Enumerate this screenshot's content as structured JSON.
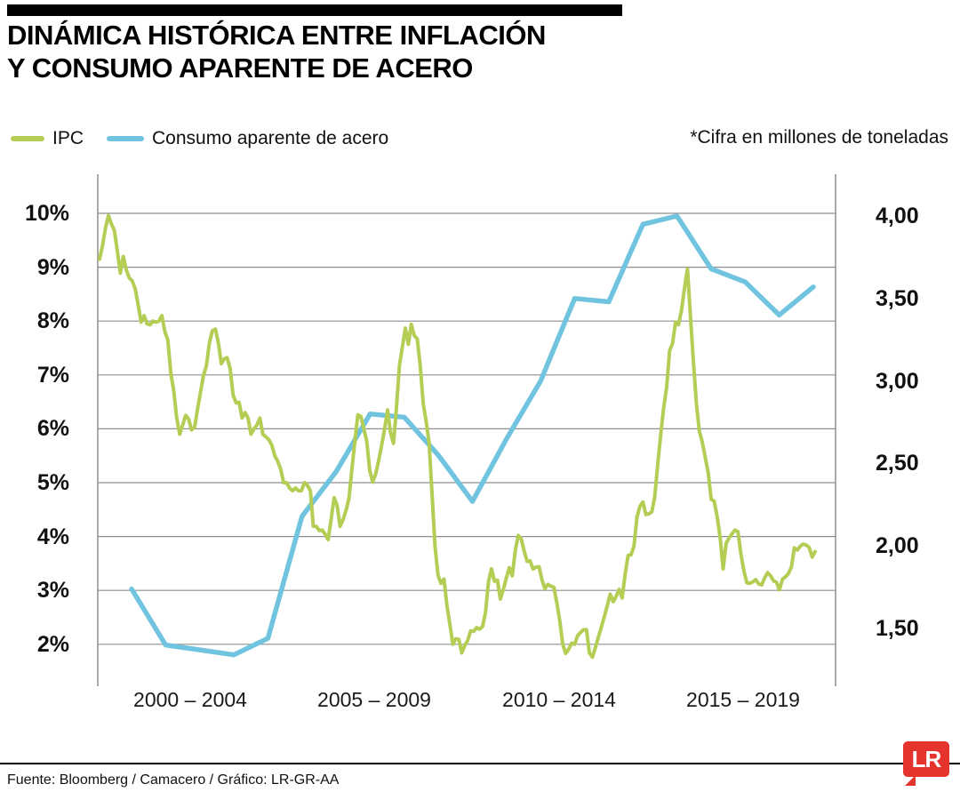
{
  "header": {
    "title_line1": "DINÁMICA HISTÓRICA ENTRE INFLACIÓN",
    "title_line2": "Y CONSUMO APARENTE DE ACERO"
  },
  "legend": {
    "items": [
      {
        "label": "IPC",
        "color": "#b4cd55"
      },
      {
        "label": "Consumo aparente de acero",
        "color": "#71c4df"
      }
    ],
    "note": "*Cifra en millones de toneladas"
  },
  "footer": {
    "source": "Fuente: Bloomberg / Camacero / Gráfico: LR-GR-AA",
    "logo_text": "LR",
    "logo_color": "#e5332e"
  },
  "chart_data": {
    "type": "line",
    "title": "Dinámica histórica entre inflación y consumo aparente de acero",
    "grid_color": "#8f8f8f",
    "x_categories": [
      "2000 – 2004",
      "2005 – 2009",
      "2010 – 2014",
      "2015 – 2019"
    ],
    "left_axis": {
      "unit": "%",
      "min": 2,
      "max": 10,
      "values": [
        10,
        9,
        8,
        7,
        6,
        5,
        4,
        3,
        2
      ],
      "tick_labels": [
        "10%",
        "9%",
        "8%",
        "7%",
        "6%",
        "5%",
        "4%",
        "3%",
        "2%"
      ]
    },
    "right_axis": {
      "unit": "millones de toneladas",
      "min": 1.5,
      "max": 4.0,
      "values": [
        4.0,
        3.5,
        3.0,
        2.5,
        2.0,
        1.5
      ],
      "tick_labels": [
        "4,00",
        "3,50",
        "3,00",
        "2,50",
        "2,00",
        "1,50"
      ]
    },
    "series": [
      {
        "name": "IPC",
        "axis": "left",
        "color": "#b4cd55",
        "frequency": "monthly",
        "start_year": 2000,
        "end": "2020-02",
        "values": [
          9.15,
          9.4,
          9.73,
          9.96,
          9.8,
          9.68,
          9.3,
          8.89,
          9.2,
          8.95,
          8.8,
          8.75,
          8.6,
          8.3,
          7.98,
          8.1,
          7.95,
          7.93,
          8.0,
          7.98,
          8.0,
          8.1,
          7.8,
          7.65,
          7.03,
          6.7,
          6.2,
          5.9,
          6.07,
          6.25,
          6.18,
          5.98,
          6.03,
          6.36,
          6.68,
          6.99,
          7.17,
          7.6,
          7.82,
          7.85,
          7.6,
          7.21,
          7.3,
          7.32,
          7.11,
          6.62,
          6.48,
          6.49,
          6.2,
          6.3,
          6.2,
          5.9,
          6.0,
          6.07,
          6.2,
          5.9,
          5.85,
          5.8,
          5.7,
          5.5,
          5.4,
          5.25,
          5.0,
          5.0,
          4.9,
          4.85,
          4.9,
          4.85,
          4.85,
          5.0,
          4.95,
          4.85,
          4.19,
          4.19,
          4.11,
          4.12,
          4.04,
          3.94,
          4.32,
          4.72,
          4.58,
          4.19,
          4.31,
          4.48,
          4.71,
          5.25,
          5.78,
          6.26,
          6.23,
          6.0,
          5.77,
          5.22,
          5.01,
          5.16,
          5.41,
          5.69,
          6.0,
          6.35,
          5.93,
          5.73,
          6.39,
          7.18,
          7.52,
          7.87,
          7.57,
          7.94,
          7.73,
          7.67,
          7.18,
          6.47,
          6.14,
          5.73,
          4.77,
          3.81,
          3.28,
          3.13,
          3.21,
          2.72,
          2.37,
          2.0,
          2.1,
          2.09,
          1.84,
          1.98,
          2.07,
          2.25,
          2.24,
          2.31,
          2.28,
          2.33,
          2.59,
          3.17,
          3.4,
          3.17,
          3.19,
          2.84,
          3.02,
          3.23,
          3.42,
          3.27,
          3.73,
          4.02,
          3.96,
          3.73,
          3.54,
          3.55,
          3.4,
          3.43,
          3.44,
          3.2,
          3.03,
          3.11,
          3.08,
          3.06,
          2.77,
          2.44,
          2.0,
          1.83,
          1.91,
          2.02,
          2.0,
          2.16,
          2.22,
          2.27,
          2.27,
          1.84,
          1.76,
          1.94,
          2.13,
          2.32,
          2.51,
          2.72,
          2.93,
          2.79,
          2.89,
          3.02,
          2.86,
          3.29,
          3.65,
          3.66,
          3.82,
          4.36,
          4.56,
          4.64,
          4.41,
          4.42,
          4.46,
          4.74,
          5.35,
          5.89,
          6.39,
          6.77,
          7.45,
          7.59,
          7.98,
          7.93,
          8.2,
          8.6,
          8.97,
          8.1,
          7.27,
          6.48,
          5.96,
          5.75,
          5.47,
          5.18,
          4.69,
          4.66,
          4.37,
          3.99,
          3.4,
          3.87,
          3.97,
          4.05,
          4.12,
          4.09,
          3.68,
          3.37,
          3.14,
          3.13,
          3.16,
          3.2,
          3.12,
          3.1,
          3.23,
          3.33,
          3.27,
          3.18,
          3.15,
          3.01,
          3.21,
          3.25,
          3.31,
          3.43,
          3.79,
          3.75,
          3.82,
          3.86,
          3.84,
          3.8,
          3.62,
          3.72
        ]
      },
      {
        "name": "Consumo aparente de acero",
        "axis": "right",
        "color": "#71c4df",
        "frequency": "annual",
        "start_year": 2000,
        "years": [
          2000,
          2001,
          2002,
          2003,
          2004,
          2005,
          2006,
          2007,
          2008,
          2009,
          2010,
          2011,
          2012,
          2013,
          2014,
          2015,
          2016,
          2017,
          2018,
          2019,
          2020
        ],
        "values": [
          1.74,
          1.4,
          1.37,
          1.34,
          1.44,
          2.18,
          2.45,
          2.8,
          2.78,
          2.55,
          2.27,
          2.65,
          3.0,
          3.5,
          3.48,
          3.95,
          4.0,
          3.68,
          3.6,
          3.4,
          3.57
        ]
      }
    ]
  }
}
